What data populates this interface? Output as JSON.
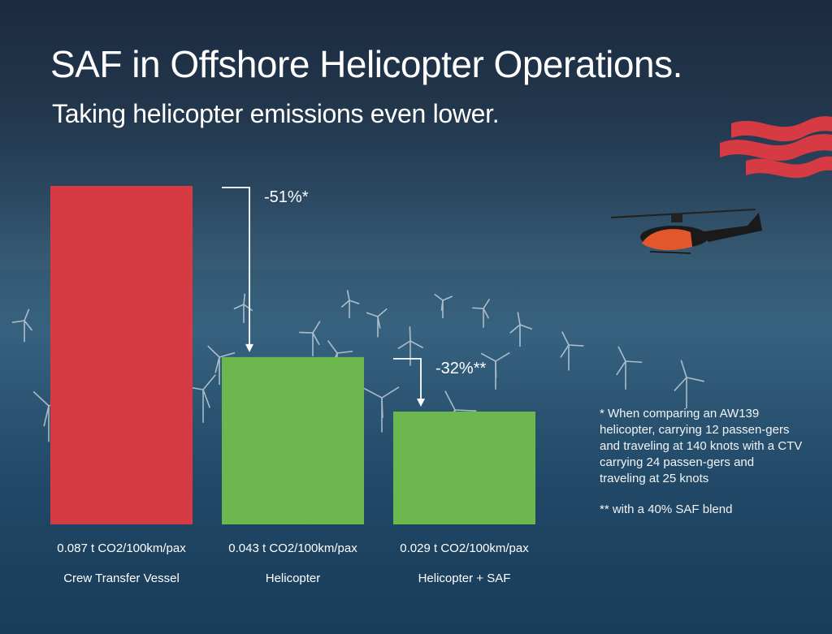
{
  "title": "SAF in Offshore Helicopter Operations.",
  "subtitle": "Taking helicopter emissions even lower.",
  "chart_data": {
    "type": "bar",
    "categories": [
      "Crew Transfer Vessel",
      "Helicopter",
      "Helicopter + SAF"
    ],
    "values": [
      0.087,
      0.043,
      0.029
    ],
    "value_labels": [
      "0.087 t CO2/100km/pax",
      "0.043 t CO2/100km/pax",
      "0.029 t CO2/100km/pax"
    ],
    "unit": "t CO2/100km/pax",
    "bar_colors": [
      "#d63a43",
      "#6cb84f",
      "#6cb84f"
    ],
    "ylim": [
      0,
      0.087
    ],
    "grid": false,
    "annotations": [
      {
        "label": "-51%*",
        "from": "Crew Transfer Vessel",
        "to": "Helicopter"
      },
      {
        "label": "-32%**",
        "from": "Helicopter",
        "to": "Helicopter + SAF"
      }
    ]
  },
  "footnotes": [
    "* When comparing an AW139 helicopter, carrying 12 passen-gers and traveling at 140 knots with a CTV carrying 24 passen-gers and traveling at 25 knots",
    "** with a 40% SAF blend"
  ],
  "colors": {
    "accent_red": "#d63a43",
    "accent_green": "#6cb84f",
    "sky": "#1c2b3f",
    "sea": "#2a5676"
  }
}
